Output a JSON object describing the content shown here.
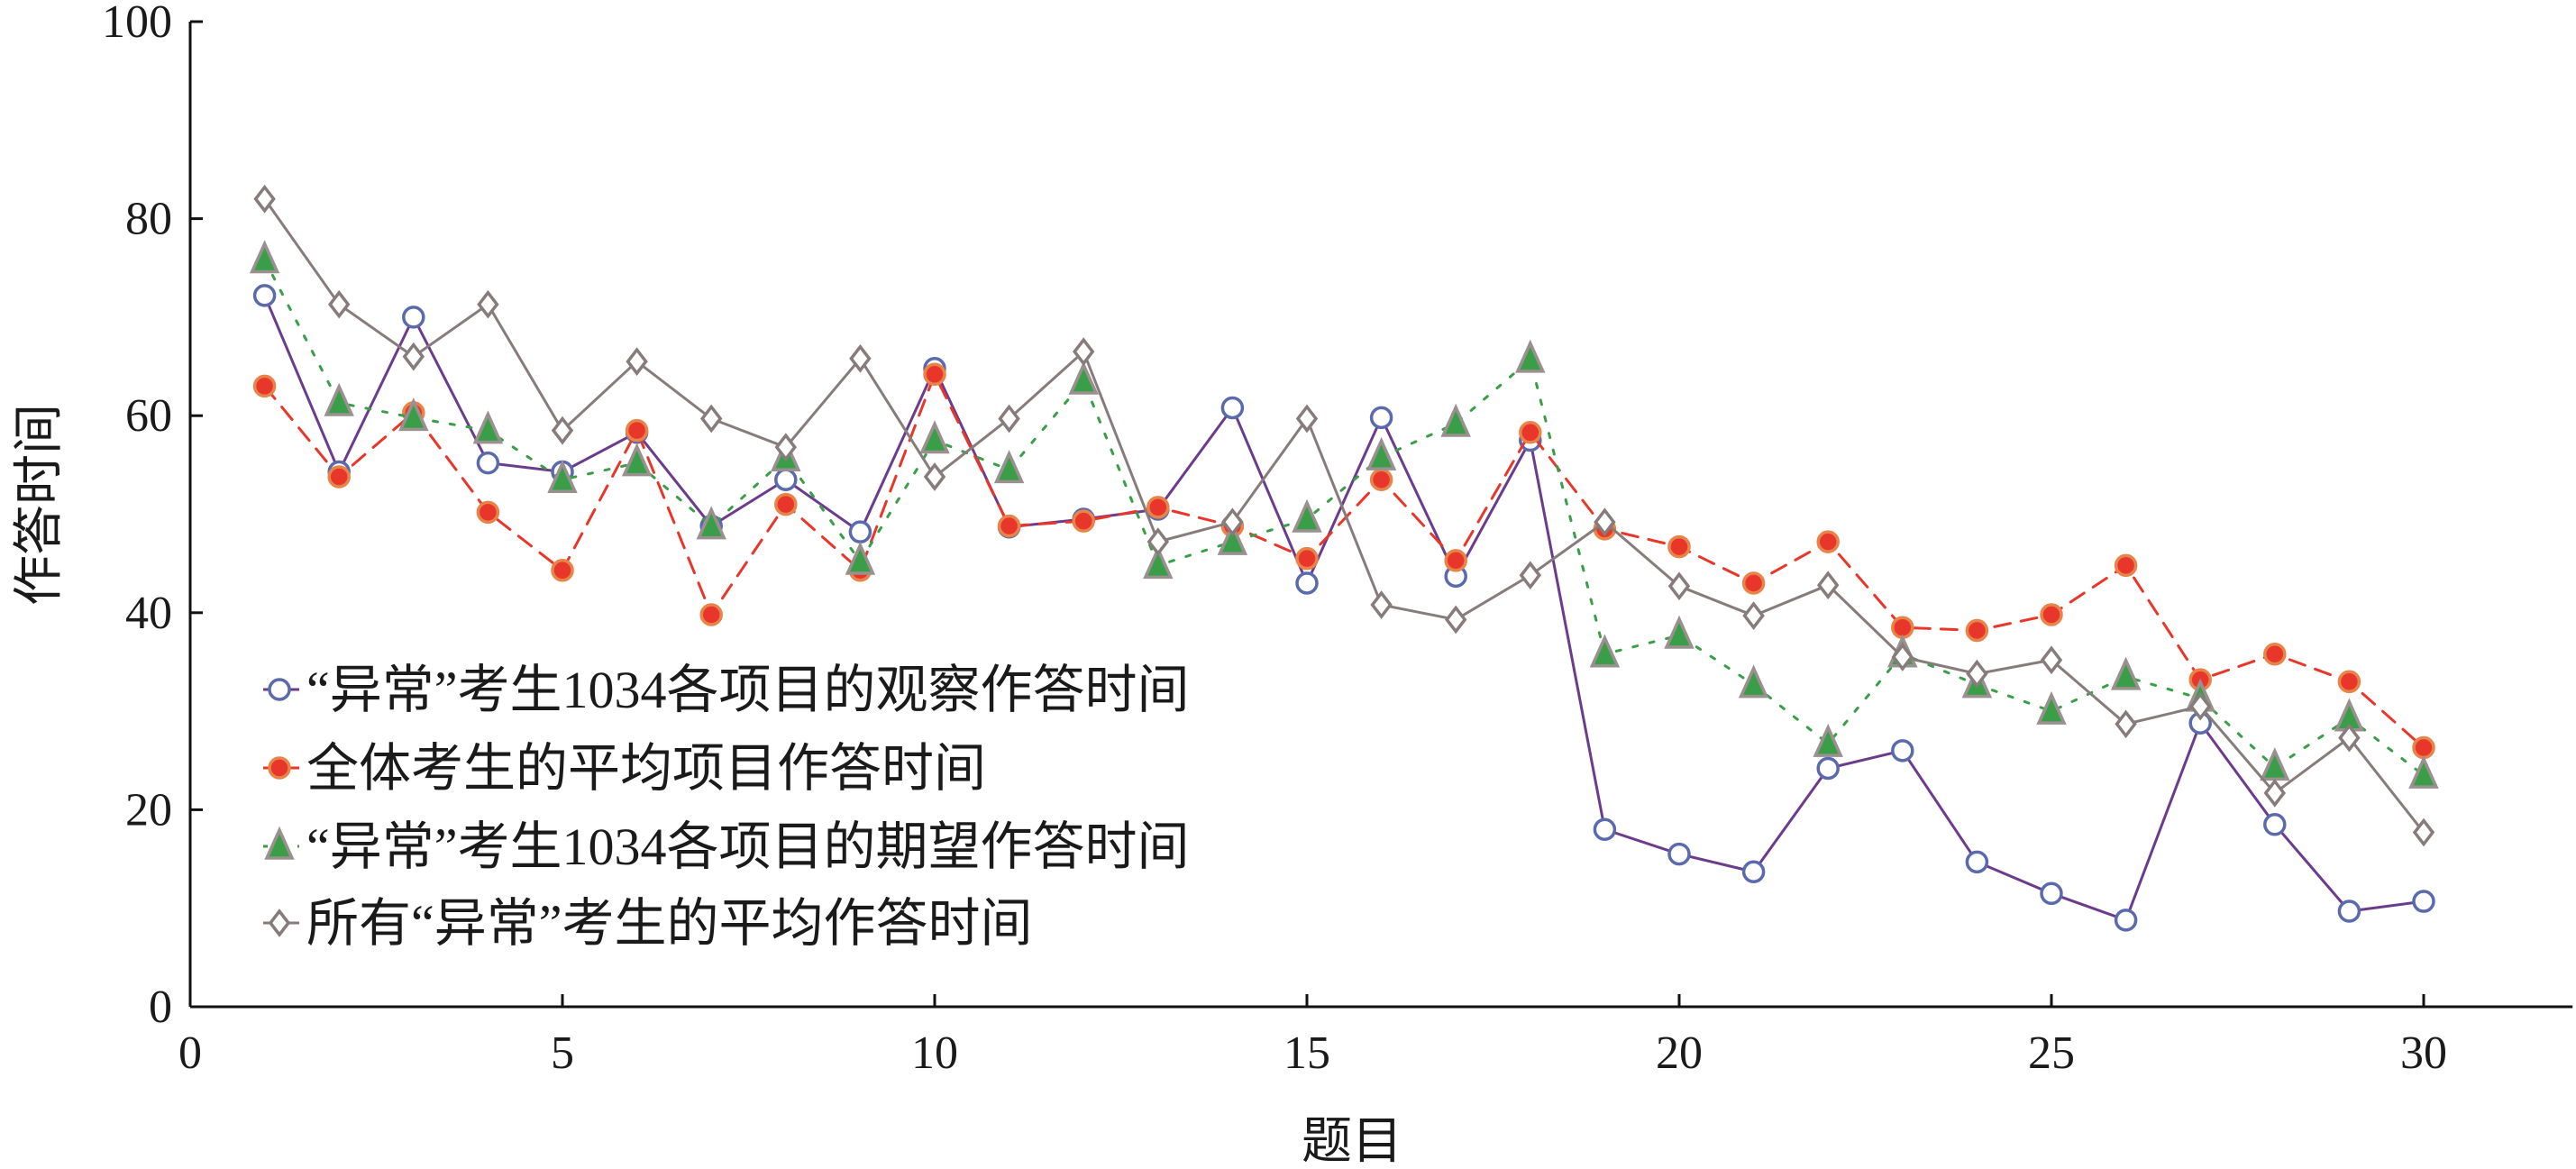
{
  "chart_data": {
    "type": "line",
    "title": "",
    "xlabel": "题目",
    "ylabel": "作答时间",
    "xlim": [
      0,
      32
    ],
    "ylim": [
      0,
      100
    ],
    "xticks": [
      0,
      5,
      10,
      15,
      20,
      25,
      30
    ],
    "yticks": [
      0,
      20,
      40,
      60,
      80,
      100
    ],
    "grid": false,
    "legend_position": "bottom-left",
    "x": [
      1,
      2,
      3,
      4,
      5,
      6,
      7,
      8,
      9,
      10,
      11,
      12,
      13,
      14,
      15,
      16,
      17,
      18,
      19,
      20,
      21,
      22,
      23,
      24,
      25,
      26,
      27,
      28,
      29,
      30
    ],
    "series": [
      {
        "name": "“异常”考生1034各项目的观察作答时间",
        "line_color": "#6b3b8c",
        "marker": "circle",
        "marker_fill": "#ffffff",
        "marker_stroke": "#5b6aac",
        "dash": "solid",
        "values": [
          72.2,
          54.3,
          70,
          55.2,
          54.3,
          58.3,
          48.8,
          53.5,
          48.2,
          64.8,
          48.7,
          49.5,
          50.5,
          60.8,
          43,
          59.8,
          43.7,
          57.5,
          18,
          15.5,
          13.7,
          24.2,
          26,
          14.7,
          11.5,
          8.8,
          28.8,
          18.5,
          9.7,
          10.7
        ]
      },
      {
        "name": "全体考生的平均项目作答时间",
        "line_color": "#e8372a",
        "marker": "circle-filled",
        "marker_fill": "#e8372a",
        "marker_stroke": "#e8834a",
        "dash": "dashed",
        "values": [
          63,
          53.8,
          60.3,
          50.2,
          44.3,
          58.5,
          39.8,
          51,
          44.3,
          64.2,
          48.8,
          49.3,
          50.7,
          48.8,
          45.5,
          53.5,
          45.3,
          58.3,
          48.5,
          46.7,
          43,
          47.2,
          38.5,
          38.2,
          39.8,
          44.8,
          33.2,
          35.8,
          33,
          26.3
        ]
      },
      {
        "name": "“异常”考生1034各项目的期望作答时间",
        "line_color": "#3a9e48",
        "marker": "triangle",
        "marker_fill": "#3a9e48",
        "marker_stroke": "#9a9090",
        "dash": "dotted",
        "values": [
          75.8,
          61.3,
          59.8,
          58.5,
          53.5,
          55.2,
          48.8,
          55.7,
          45.2,
          57.5,
          54.5,
          63.5,
          44.8,
          47.2,
          49.5,
          55.8,
          59.2,
          65.7,
          35.8,
          37.7,
          32.7,
          26.7,
          35.8,
          32.7,
          30,
          33.5,
          31.3,
          24.3,
          29.3,
          23.5
        ]
      },
      {
        "name": "所有“异常”考生的平均作答时间",
        "line_color": "#877c7c",
        "marker": "diamond",
        "marker_fill": "#ffffff",
        "marker_stroke": "#877c7c",
        "dash": "solid",
        "values": [
          82,
          71.3,
          66,
          71.3,
          58.5,
          65.5,
          59.7,
          56.8,
          65.8,
          53.8,
          59.7,
          66.5,
          47.2,
          49.2,
          59.7,
          40.8,
          39.3,
          43.8,
          49.2,
          42.7,
          39.7,
          42.8,
          35.5,
          33.8,
          35.2,
          28.7,
          30.5,
          21.7,
          27.3,
          17.7
        ]
      }
    ]
  }
}
